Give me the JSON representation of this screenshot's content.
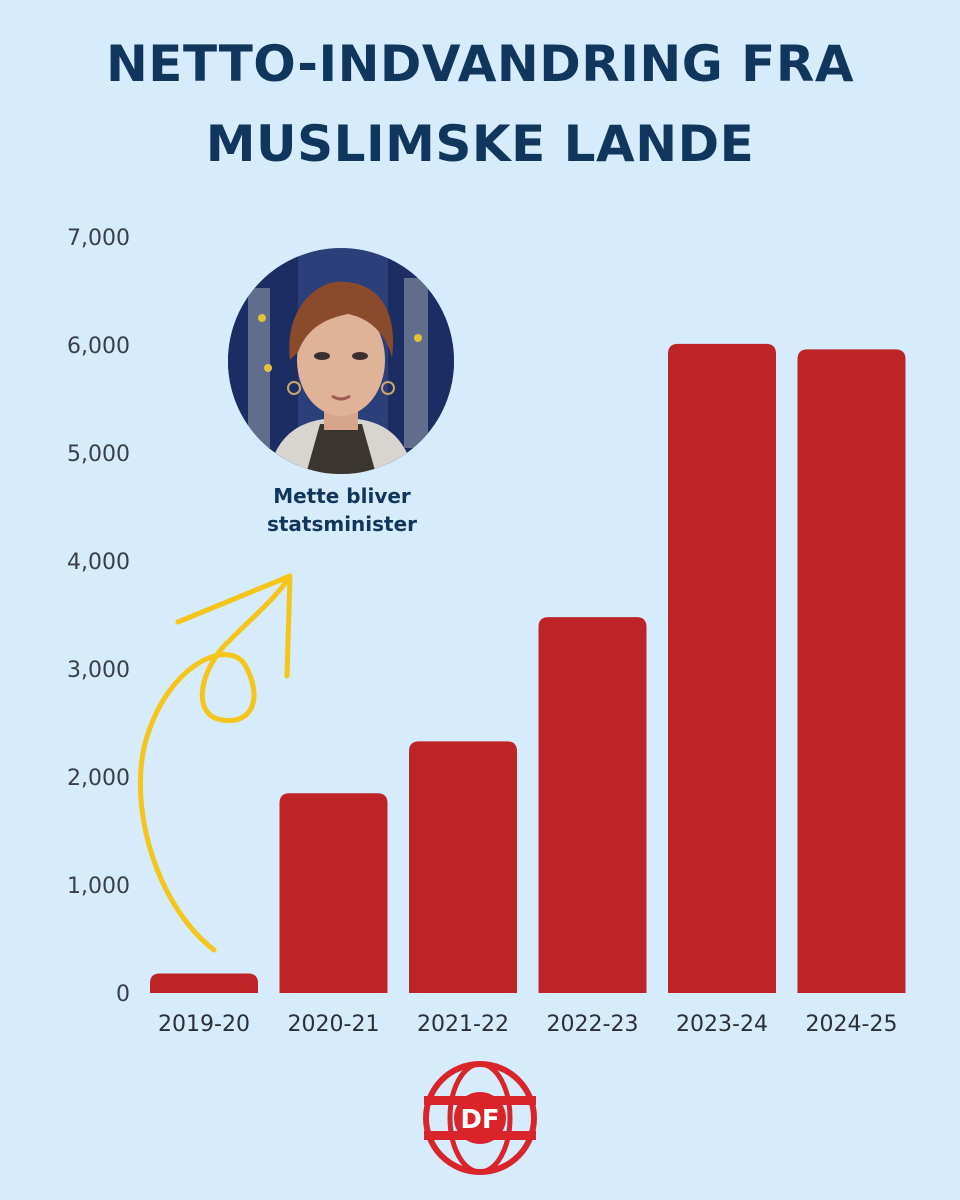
{
  "title": {
    "line1": "NETTO-INDVANDRING FRA",
    "line2": "MUSLIMSKE LANDE"
  },
  "annotation": {
    "line1": "Mette bliver",
    "line2": "statsminister",
    "arrow_color": "#f5c518"
  },
  "logo": {
    "text": "DF",
    "color": "#d9252a"
  },
  "colors": {
    "background": "#d6ebfb",
    "bar": "#be2427",
    "title": "#10365e"
  },
  "chart_data": {
    "type": "bar",
    "title": "NETTO-INDVANDRING FRA MUSLIMSKE LANDE",
    "xlabel": "",
    "ylabel": "",
    "categories": [
      "2019-20",
      "2020-21",
      "2021-22",
      "2022-23",
      "2023-24",
      "2024-25"
    ],
    "values": [
      180,
      1850,
      2330,
      3480,
      6010,
      5960
    ],
    "ylim": [
      0,
      7000
    ],
    "yticks": [
      0,
      1000,
      2000,
      3000,
      4000,
      5000,
      6000,
      7000
    ],
    "ytick_labels": [
      "0",
      "1,000",
      "2,000",
      "3,000",
      "4,000",
      "5,000",
      "6,000",
      "7,000"
    ],
    "grid": false,
    "legend": "none"
  }
}
